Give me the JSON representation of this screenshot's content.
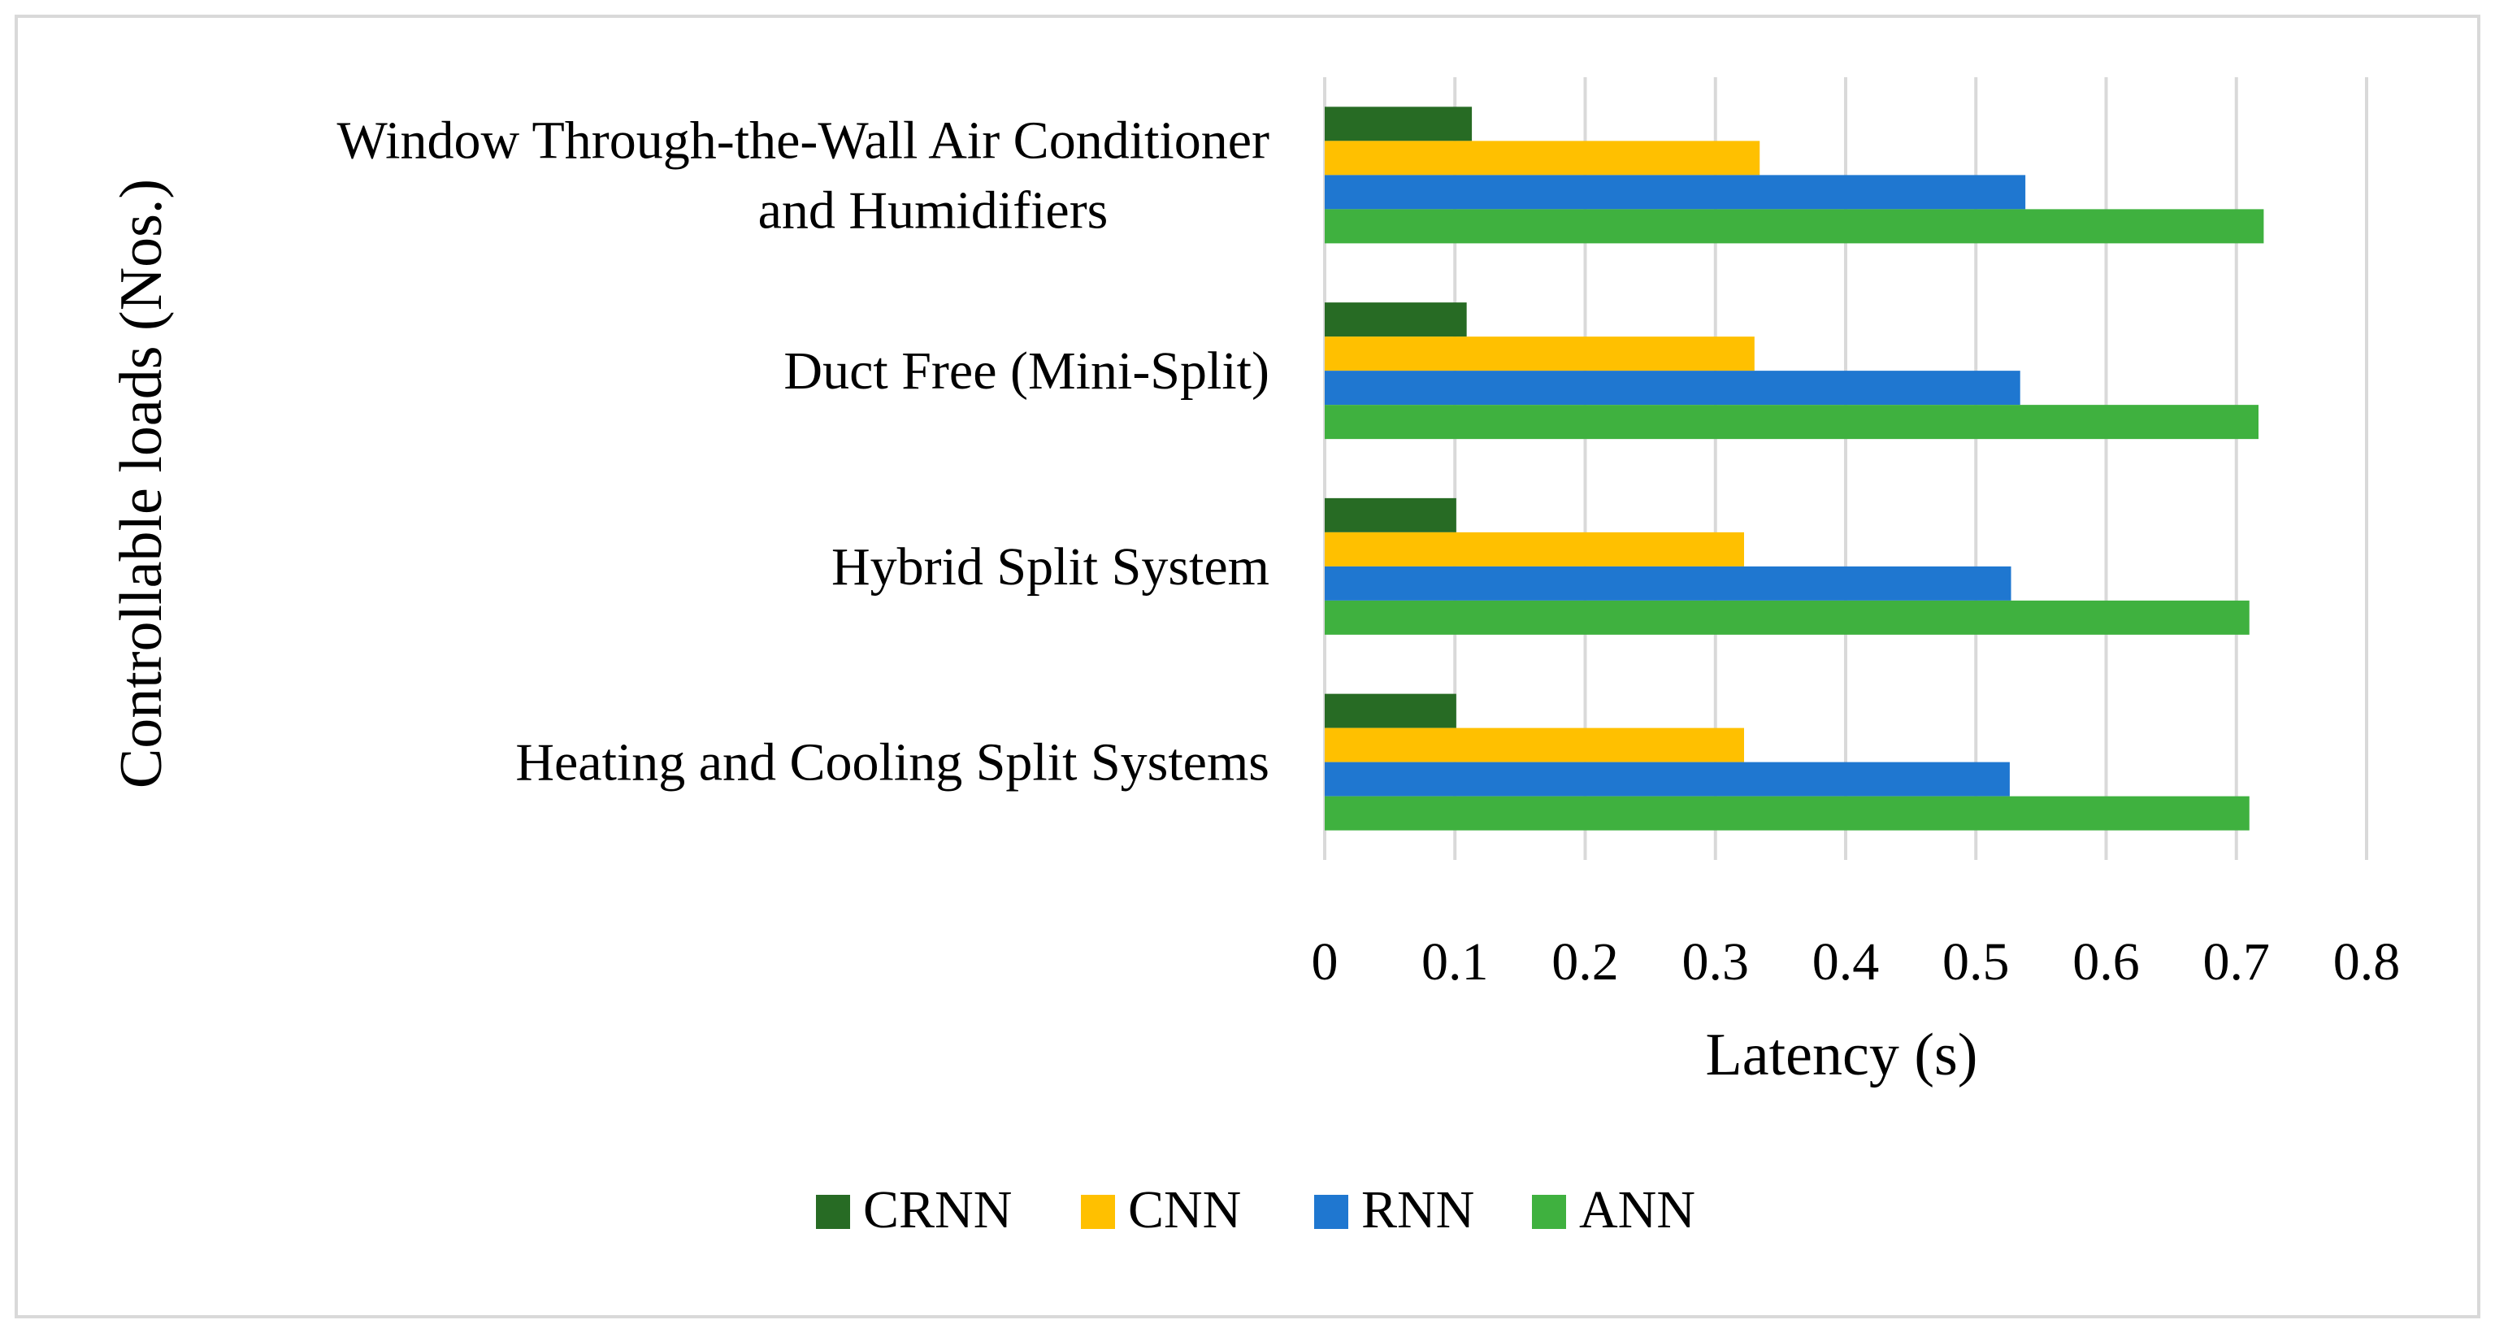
{
  "chart_data": {
    "type": "bar",
    "orientation": "horizontal",
    "title": "",
    "xlabel": "Latency (s)",
    "ylabel": "Controllable loads (Nos.)",
    "xlim": [
      0,
      0.8
    ],
    "xticks": [
      "0",
      "0.1",
      "0.2",
      "0.3",
      "0.4",
      "0.5",
      "0.6",
      "0.7",
      "0.8"
    ],
    "grid": true,
    "legend_position": "bottom",
    "categories": [
      [
        "Window Through-the-Wall Air Conditioner",
        "and Humidifiers"
      ],
      [
        "Duct Free (Mini-Split)"
      ],
      [
        "Hybrid Split System"
      ],
      [
        "Heating and Cooling Split Systems"
      ]
    ],
    "series": [
      {
        "name": "CRNN",
        "color": "#276b24",
        "values": [
          0.113,
          0.109,
          0.101,
          0.101
        ]
      },
      {
        "name": "CNN",
        "color": "#ffc000",
        "values": [
          0.334,
          0.33,
          0.322,
          0.322
        ]
      },
      {
        "name": "RNN",
        "color": "#1f77d0",
        "values": [
          0.538,
          0.534,
          0.527,
          0.526
        ]
      },
      {
        "name": "ANN",
        "color": "#3fb13f",
        "values": [
          0.721,
          0.717,
          0.71,
          0.71
        ]
      }
    ]
  }
}
